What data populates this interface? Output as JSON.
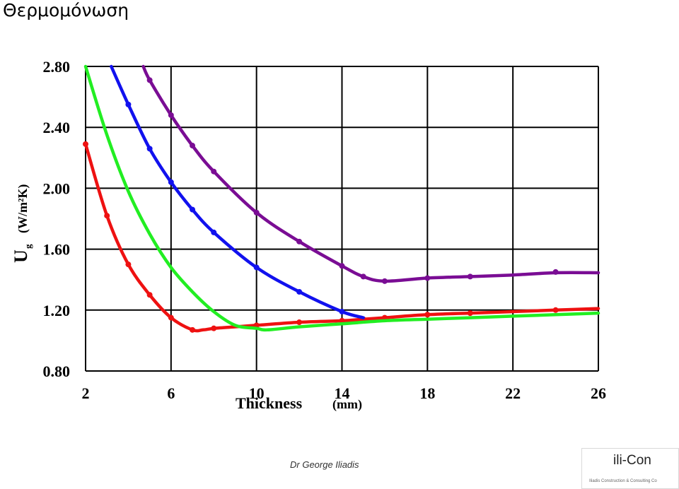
{
  "page": {
    "title": "Θερμομόνωση",
    "author": "Dr George Iliadis",
    "logo": {
      "name": "ili-Con",
      "subtitle": "Iliadis Construction & Consulting Co"
    }
  },
  "chart_data": {
    "type": "line",
    "title": "",
    "xlabel": "Thickness",
    "xlabel_unit": "(mm)",
    "ylabel_main": "U",
    "ylabel_sub": "g",
    "ylabel_unit": "(W/m²K)",
    "xlim": [
      2,
      26
    ],
    "ylim": [
      0.8,
      2.8
    ],
    "xticks": [
      2,
      6,
      10,
      14,
      18,
      22,
      26
    ],
    "xtick_labels": [
      "2",
      "6",
      "10",
      "14",
      "18",
      "22",
      "26"
    ],
    "yticks": [
      0.8,
      1.2,
      1.6,
      2.0,
      2.4,
      2.8
    ],
    "ytick_labels": [
      "0.80",
      "1.20",
      "1.60",
      "2.00",
      "2.40",
      "2.80"
    ],
    "grid": true,
    "series": [
      {
        "color": "#ee1111",
        "x": [
          2,
          3,
          4,
          5,
          6,
          7,
          7.5,
          8,
          9,
          10,
          12,
          14,
          15,
          16,
          18,
          20,
          22,
          24,
          26
        ],
        "y": [
          2.29,
          1.82,
          1.5,
          1.3,
          1.15,
          1.07,
          1.07,
          1.08,
          1.09,
          1.1,
          1.12,
          1.13,
          1.14,
          1.15,
          1.17,
          1.18,
          1.19,
          1.2,
          1.21
        ],
        "markers_x": [
          2,
          3,
          4,
          5,
          6,
          7,
          8,
          10,
          12,
          14,
          15,
          16,
          18,
          20,
          24
        ],
        "markers_y": [
          2.29,
          1.82,
          1.5,
          1.3,
          1.15,
          1.07,
          1.08,
          1.1,
          1.12,
          1.13,
          1.14,
          1.15,
          1.17,
          1.18,
          1.2
        ]
      },
      {
        "color": "#22ee22",
        "x": [
          2,
          3,
          4,
          5,
          6,
          7,
          8,
          9,
          10,
          10.5,
          12,
          14,
          16,
          18,
          20,
          22,
          24,
          26
        ],
        "y": [
          2.8,
          2.35,
          1.98,
          1.7,
          1.48,
          1.32,
          1.19,
          1.1,
          1.08,
          1.07,
          1.09,
          1.11,
          1.13,
          1.14,
          1.15,
          1.16,
          1.17,
          1.18
        ],
        "markers_x": [],
        "markers_y": []
      },
      {
        "color": "#1111ee",
        "x": [
          3.2,
          4,
          5,
          6,
          7,
          8,
          10,
          12,
          14,
          15
        ],
        "y": [
          2.8,
          2.55,
          2.26,
          2.04,
          1.86,
          1.71,
          1.48,
          1.32,
          1.19,
          1.15
        ],
        "markers_x": [
          4,
          5,
          6,
          7,
          8,
          10,
          12,
          14
        ],
        "markers_y": [
          2.55,
          2.26,
          2.04,
          1.86,
          1.71,
          1.48,
          1.32,
          1.19
        ]
      },
      {
        "color": "#7a0d94",
        "x": [
          4.7,
          5,
          6,
          7,
          8,
          10,
          12,
          14,
          15,
          16,
          18,
          20,
          22,
          24,
          26
        ],
        "y": [
          2.8,
          2.71,
          2.48,
          2.28,
          2.11,
          1.84,
          1.65,
          1.49,
          1.42,
          1.39,
          1.41,
          1.42,
          1.43,
          1.445,
          1.445
        ],
        "markers_x": [
          5,
          6,
          7,
          8,
          10,
          12,
          14,
          15,
          16,
          18,
          20,
          24
        ],
        "markers_y": [
          2.71,
          2.48,
          2.28,
          2.11,
          1.84,
          1.65,
          1.49,
          1.42,
          1.39,
          1.41,
          1.42,
          1.45
        ]
      }
    ]
  }
}
